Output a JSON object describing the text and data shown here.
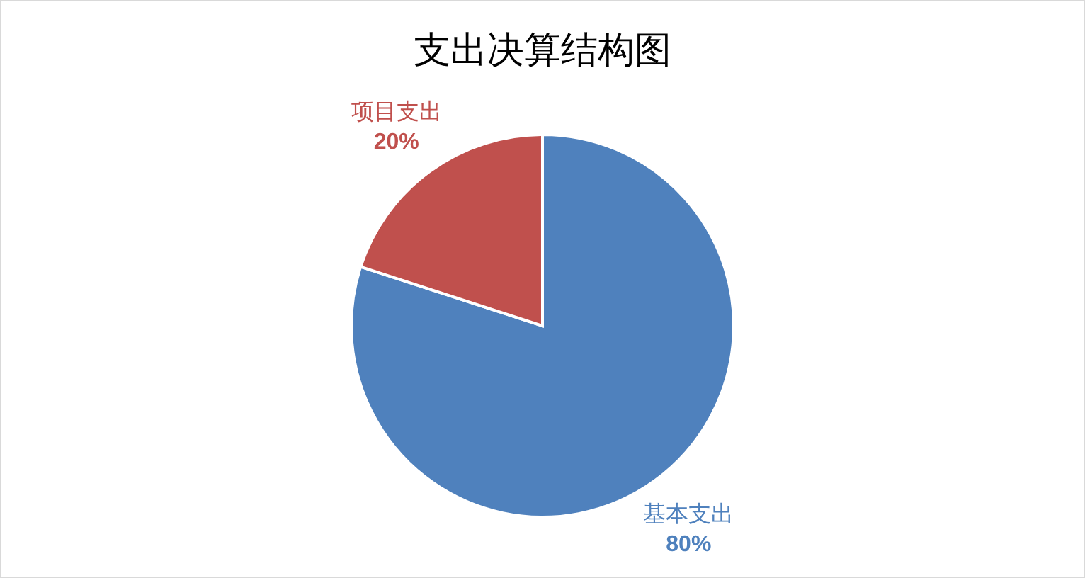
{
  "chart_data": {
    "type": "pie",
    "title": "支出决算结构图",
    "categories": [
      "基本支出",
      "项目支出"
    ],
    "values": [
      80,
      20
    ],
    "colors": [
      "#4f81bd",
      "#c0504d"
    ],
    "value_labels": [
      "80%",
      "20%"
    ]
  }
}
